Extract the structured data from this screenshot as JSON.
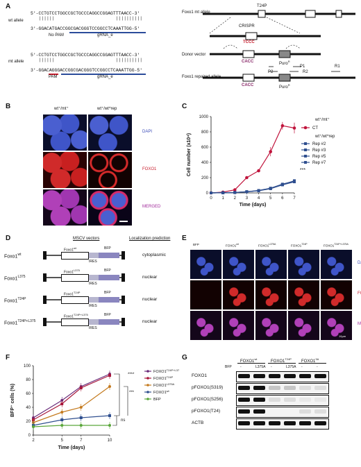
{
  "panels": {
    "A": "A",
    "B": "B",
    "C": "C",
    "D": "D",
    "E": "E",
    "F": "F",
    "G": "G"
  },
  "panelA": {
    "wt_label": "wt allele",
    "mt_label": "mt allele",
    "wt_top": "5'-CCTGTCCTGGCCGCTGCCCAGGCCGGAGTTTAACC-3'",
    "wt_bars": "   ||||||                       ||||||||||",
    "wt_bottom": "3'-GGACATGACCGGCGACGGGTCCGGCCTCAAATTGG-5'",
    "wt_note": "No PAM",
    "wt_grna": "gRNA_e",
    "mt_top": "5'-CCTGTCCTGGCCGCTGCCCAGGCCGGAGTTTAACC-3'",
    "mt_bars": "   ||||||                       ||||||||||",
    "mt_bottom": "3'-GGACAGGGACCGGCGACGGGTCCGGCCTCAAATTGG-5'",
    "mt_pam": "PAM",
    "mt_grna": "gRNA_e",
    "foxo1_mt": "Foxo1 mt allele",
    "t24p": "T24P",
    "crispr": "CRISPR",
    "tccc": "TCCC",
    "donor": "Donor vector",
    "cacc": "CACC",
    "puro": "Puro",
    "puro_sup": "R",
    "repaired": "Foxo1 repaired allele",
    "cacc2": "CACC",
    "puro2": "Puro",
    "p1": "P1",
    "p2": "P2",
    "r1": "R1",
    "r2": "R2"
  },
  "panelB": {
    "col1": "wt⁺/mt⁺",
    "col2": "wt⁺/wt^rep",
    "row_labels": [
      "DAPI",
      "FOXO1",
      "MERGED"
    ]
  },
  "chart_data": {
    "type": "line",
    "xlabel": "Time (days)",
    "ylabel": "Cell number (x10⁴)",
    "x": [
      0,
      1,
      2,
      3,
      4,
      5,
      6,
      7
    ],
    "xlim": [
      0,
      7
    ],
    "ylim": [
      0,
      1000
    ],
    "yticks": [
      0,
      200,
      400,
      600,
      800,
      1000
    ],
    "series": [
      {
        "name": "CT",
        "group": "wt⁺/mt⁺",
        "color": "#c0143c",
        "values": [
          0,
          10,
          40,
          200,
          290,
          540,
          880,
          850
        ]
      },
      {
        "name": "Rep #2",
        "group": "wt⁺/wt^rep",
        "color": "#2f4f8f",
        "values": [
          0,
          2,
          5,
          15,
          30,
          60,
          110,
          150
        ]
      },
      {
        "name": "Rep #3",
        "group": "wt⁺/wt^rep",
        "color": "#2f4f8f",
        "values": [
          0,
          2,
          5,
          14,
          28,
          55,
          105,
          145
        ]
      },
      {
        "name": "Rep #5",
        "group": "wt⁺/wt^rep",
        "color": "#2f4f8f",
        "values": [
          0,
          2,
          6,
          16,
          32,
          62,
          115,
          155
        ]
      },
      {
        "name": "Rep #7",
        "group": "wt⁺/wt^rep",
        "color": "#2f4f8f",
        "values": [
          0,
          2,
          5,
          15,
          30,
          58,
          108,
          160
        ]
      }
    ],
    "legend_groups": [
      "wt⁺/mt⁺",
      "wt⁺/wt^rep"
    ],
    "significance": "***"
  },
  "panelD": {
    "title1": "MSCV vectors",
    "title2": "Localization prediction",
    "constructs": [
      {
        "name": "Foxo1",
        "sup": "wt",
        "gene": "Foxo1",
        "gene_sup": "wt",
        "prediction": "cytoplasmic"
      },
      {
        "name": "Foxo1",
        "sup": "L375",
        "gene": "Foxo1",
        "gene_sup": "L375",
        "prediction": "nuclear"
      },
      {
        "name": "Foxo1",
        "sup": "T24P",
        "gene": "Foxo1",
        "gene_sup": "T24P",
        "prediction": "nuclear"
      },
      {
        "name": "Foxo1",
        "sup": "T24P+L375",
        "gene": "Foxo1",
        "gene_sup": "T24P+L375",
        "prediction": "nuclear"
      }
    ],
    "bfp": "BFP",
    "ires": "IRES"
  },
  "panelE": {
    "cols": [
      {
        "t": "BFP",
        "s": ""
      },
      {
        "t": "FOXO1",
        "s": "wt"
      },
      {
        "t": "FOXO1",
        "s": "L375A"
      },
      {
        "t": "FOXO1",
        "s": "T24P"
      },
      {
        "t": "FOXO1",
        "s": "T24P+L375A"
      }
    ],
    "row_labels": [
      "DAPI",
      "FOXO1",
      "MERGED"
    ],
    "scale": "10µm"
  },
  "chart_data_F": {
    "type": "line",
    "xlabel": "Time (days)",
    "ylabel": "BFP⁺ cells (%)",
    "x": [
      2,
      5,
      7,
      10
    ],
    "xlim": [
      2,
      10
    ],
    "ylim": [
      0,
      100
    ],
    "yticks": [
      0,
      20,
      40,
      60,
      80,
      100
    ],
    "series": [
      {
        "name": "FOXO1",
        "sup": "T24P+L375A",
        "color": "#6a2b7a",
        "values": [
          25,
          50,
          70,
          88
        ]
      },
      {
        "name": "FOXO1",
        "sup": "T24P",
        "color": "#a8163a",
        "values": [
          22,
          45,
          68,
          86
        ]
      },
      {
        "name": "FOXO1",
        "sup": "L375A",
        "color": "#c47a1e",
        "values": [
          18,
          33,
          40,
          70
        ]
      },
      {
        "name": "FOXO1",
        "sup": "wt",
        "color": "#2f4f8f",
        "values": [
          14,
          22,
          25,
          28
        ]
      },
      {
        "name": "BFP",
        "sup": "",
        "color": "#5aa63a",
        "values": [
          12,
          14,
          14,
          14
        ]
      }
    ],
    "sig": [
      "****",
      "***",
      "ns"
    ]
  },
  "panelG": {
    "groups": [
      {
        "t": "FOXO1",
        "s": "wt"
      },
      {
        "t": "FOXO1",
        "s": "T24P"
      },
      {
        "t": "FOXO1",
        "s": "3A"
      }
    ],
    "bfp": "BFP",
    "lanes": [
      "-",
      "L375A",
      "-",
      "L375A",
      "-",
      "-"
    ],
    "rows": [
      "FOXO1",
      "pFOXO1(S319)",
      "pFOXO1(S256)",
      "pFOXO1(T24)",
      "ACTB"
    ]
  }
}
